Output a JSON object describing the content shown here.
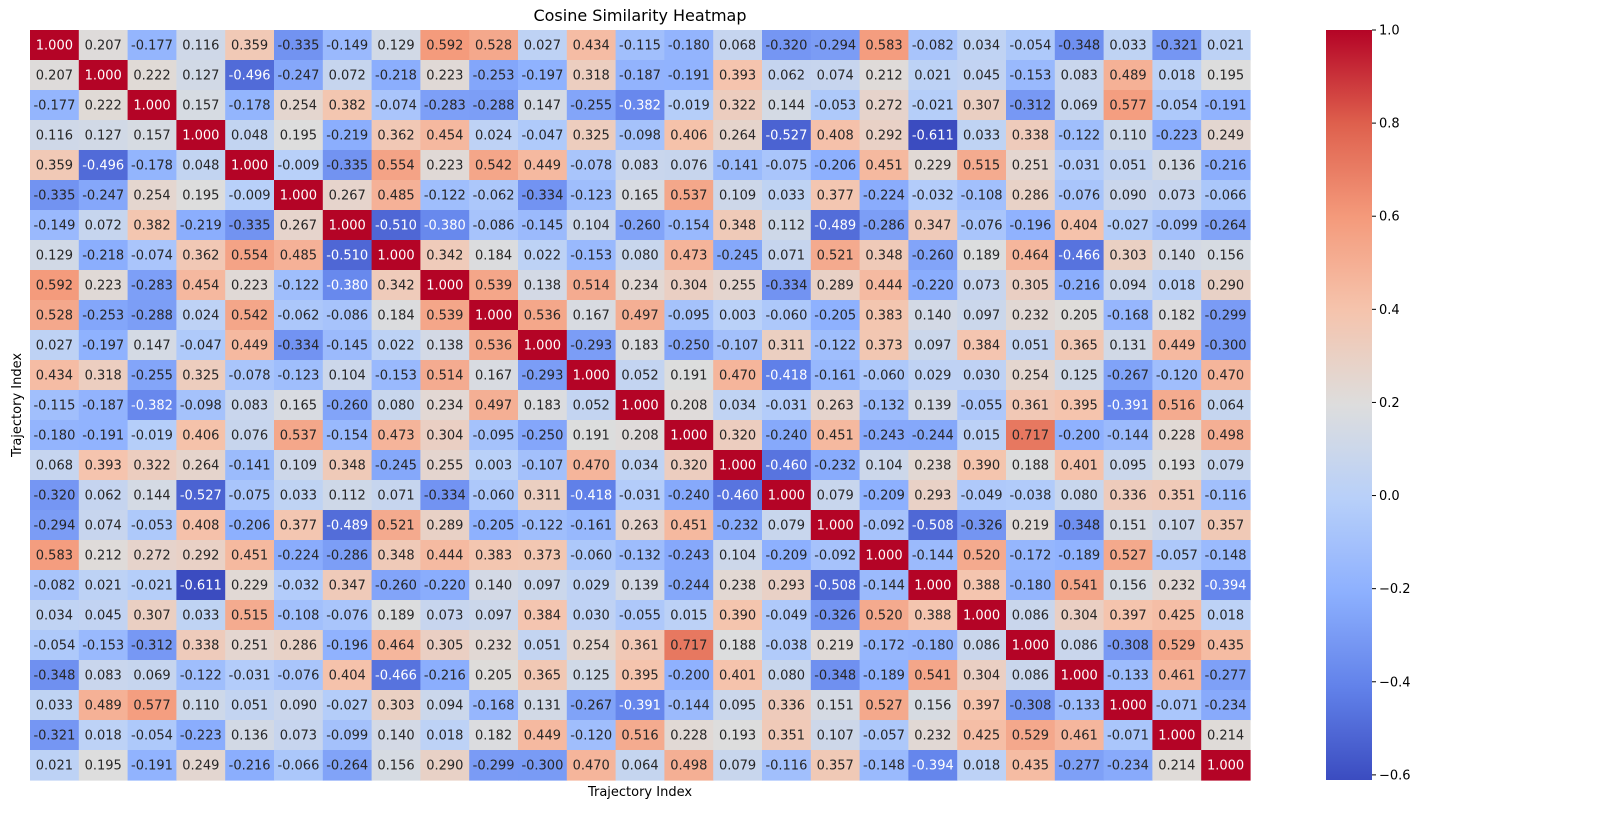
{
  "chart_data": {
    "type": "heatmap",
    "title": "Cosine Similarity Heatmap",
    "xlabel": "Trajectory Index",
    "ylabel": "Trajectory Index",
    "colormap": "coolwarm",
    "value_format": "3 decimals",
    "vmin": -0.611,
    "vmax": 1.0,
    "colorbar_ticks": [
      "1.0",
      "0.8",
      "0.6",
      "0.4",
      "0.2",
      "0.0",
      "−0.2",
      "−0.4",
      "−0.6"
    ],
    "matrix": [
      [
        1.0,
        0.207,
        -0.177,
        0.116,
        0.359,
        -0.335,
        -0.149,
        0.129,
        0.592,
        0.528,
        0.027,
        0.434,
        -0.115,
        -0.18,
        0.068,
        -0.32,
        -0.294,
        0.583,
        -0.082,
        0.034,
        -0.054,
        -0.348,
        0.033,
        -0.321,
        0.021
      ],
      [
        0.207,
        1.0,
        0.222,
        0.127,
        -0.496,
        -0.247,
        0.072,
        -0.218,
        0.223,
        -0.253,
        -0.197,
        0.318,
        -0.187,
        -0.191,
        0.393,
        0.062,
        0.074,
        0.212,
        0.021,
        0.045,
        -0.153,
        0.083,
        0.489,
        0.018,
        0.195
      ],
      [
        -0.177,
        0.222,
        1.0,
        0.157,
        -0.178,
        0.254,
        0.382,
        -0.074,
        -0.283,
        -0.288,
        0.147,
        -0.255,
        -0.382,
        -0.019,
        0.322,
        0.144,
        -0.053,
        0.272,
        -0.021,
        0.307,
        -0.312,
        0.069,
        0.577,
        -0.054,
        -0.191
      ],
      [
        0.116,
        0.127,
        0.157,
        1.0,
        0.048,
        0.195,
        -0.219,
        0.362,
        0.454,
        0.024,
        -0.047,
        0.325,
        -0.098,
        0.406,
        0.264,
        -0.527,
        0.408,
        0.292,
        -0.611,
        0.033,
        0.338,
        -0.122,
        0.11,
        -0.223,
        0.249
      ],
      [
        0.359,
        -0.496,
        -0.178,
        0.048,
        1.0,
        -0.009,
        -0.335,
        0.554,
        0.223,
        0.542,
        0.449,
        -0.078,
        0.083,
        0.076,
        -0.141,
        -0.075,
        -0.206,
        0.451,
        0.229,
        0.515,
        0.251,
        -0.031,
        0.051,
        0.136,
        -0.216
      ],
      [
        -0.335,
        -0.247,
        0.254,
        0.195,
        -0.009,
        1.0,
        0.267,
        0.485,
        -0.122,
        -0.062,
        -0.334,
        -0.123,
        0.165,
        0.537,
        0.109,
        0.033,
        0.377,
        -0.224,
        -0.032,
        -0.108,
        0.286,
        -0.076,
        0.09,
        0.073,
        -0.066
      ],
      [
        -0.149,
        0.072,
        0.382,
        -0.219,
        -0.335,
        0.267,
        1.0,
        -0.51,
        -0.38,
        -0.086,
        -0.145,
        0.104,
        -0.26,
        -0.154,
        0.348,
        0.112,
        -0.489,
        -0.286,
        0.347,
        -0.076,
        -0.196,
        0.404,
        -0.027,
        -0.099,
        -0.264
      ],
      [
        0.129,
        -0.218,
        -0.074,
        0.362,
        0.554,
        0.485,
        -0.51,
        1.0,
        0.342,
        0.184,
        0.022,
        -0.153,
        0.08,
        0.473,
        -0.245,
        0.071,
        0.521,
        0.348,
        -0.26,
        0.189,
        0.464,
        -0.466,
        0.303,
        0.14,
        0.156
      ],
      [
        0.592,
        0.223,
        -0.283,
        0.454,
        0.223,
        -0.122,
        -0.38,
        0.342,
        1.0,
        0.539,
        0.138,
        0.514,
        0.234,
        0.304,
        0.255,
        -0.334,
        0.289,
        0.444,
        -0.22,
        0.073,
        0.305,
        -0.216,
        0.094,
        0.018,
        0.29
      ],
      [
        0.528,
        -0.253,
        -0.288,
        0.024,
        0.542,
        -0.062,
        -0.086,
        0.184,
        0.539,
        1.0,
        0.536,
        0.167,
        0.497,
        -0.095,
        0.003,
        -0.06,
        -0.205,
        0.383,
        0.14,
        0.097,
        0.232,
        0.205,
        -0.168,
        0.182,
        -0.299
      ],
      [
        0.027,
        -0.197,
        0.147,
        -0.047,
        0.449,
        -0.334,
        -0.145,
        0.022,
        0.138,
        0.536,
        1.0,
        -0.293,
        0.183,
        -0.25,
        -0.107,
        0.311,
        -0.122,
        0.373,
        0.097,
        0.384,
        0.051,
        0.365,
        0.131,
        0.449,
        -0.3
      ],
      [
        0.434,
        0.318,
        -0.255,
        0.325,
        -0.078,
        -0.123,
        0.104,
        -0.153,
        0.514,
        0.167,
        -0.293,
        1.0,
        0.052,
        0.191,
        0.47,
        -0.418,
        -0.161,
        -0.06,
        0.029,
        0.03,
        0.254,
        0.125,
        -0.267,
        -0.12,
        0.47
      ],
      [
        -0.115,
        -0.187,
        -0.382,
        -0.098,
        0.083,
        0.165,
        -0.26,
        0.08,
        0.234,
        0.497,
        0.183,
        0.052,
        1.0,
        0.208,
        0.034,
        -0.031,
        0.263,
        -0.132,
        0.139,
        -0.055,
        0.361,
        0.395,
        -0.391,
        0.516,
        0.064
      ],
      [
        -0.18,
        -0.191,
        -0.019,
        0.406,
        0.076,
        0.537,
        -0.154,
        0.473,
        0.304,
        -0.095,
        -0.25,
        0.191,
        0.208,
        1.0,
        0.32,
        -0.24,
        0.451,
        -0.243,
        -0.244,
        0.015,
        0.717,
        -0.2,
        -0.144,
        0.228,
        0.498
      ],
      [
        0.068,
        0.393,
        0.322,
        0.264,
        -0.141,
        0.109,
        0.348,
        -0.245,
        0.255,
        0.003,
        -0.107,
        0.47,
        0.034,
        0.32,
        1.0,
        -0.46,
        -0.232,
        0.104,
        0.238,
        0.39,
        0.188,
        0.401,
        0.095,
        0.193,
        0.079
      ],
      [
        -0.32,
        0.062,
        0.144,
        -0.527,
        -0.075,
        0.033,
        0.112,
        0.071,
        -0.334,
        -0.06,
        0.311,
        -0.418,
        -0.031,
        -0.24,
        -0.46,
        1.0,
        0.079,
        -0.209,
        0.293,
        -0.049,
        -0.038,
        0.08,
        0.336,
        0.351,
        -0.116
      ],
      [
        -0.294,
        0.074,
        -0.053,
        0.408,
        -0.206,
        0.377,
        -0.489,
        0.521,
        0.289,
        -0.205,
        -0.122,
        -0.161,
        0.263,
        0.451,
        -0.232,
        0.079,
        1.0,
        -0.092,
        -0.508,
        -0.326,
        0.219,
        -0.348,
        0.151,
        0.107,
        0.357
      ],
      [
        0.583,
        0.212,
        0.272,
        0.292,
        0.451,
        -0.224,
        -0.286,
        0.348,
        0.444,
        0.383,
        0.373,
        -0.06,
        -0.132,
        -0.243,
        0.104,
        -0.209,
        -0.092,
        1.0,
        -0.144,
        0.52,
        -0.172,
        -0.189,
        0.527,
        -0.057,
        -0.148
      ],
      [
        -0.082,
        0.021,
        -0.021,
        -0.611,
        0.229,
        -0.032,
        0.347,
        -0.26,
        -0.22,
        0.14,
        0.097,
        0.029,
        0.139,
        -0.244,
        0.238,
        0.293,
        -0.508,
        -0.144,
        1.0,
        0.388,
        -0.18,
        0.541,
        0.156,
        0.232,
        -0.394
      ],
      [
        0.034,
        0.045,
        0.307,
        0.033,
        0.515,
        -0.108,
        -0.076,
        0.189,
        0.073,
        0.097,
        0.384,
        0.03,
        -0.055,
        0.015,
        0.39,
        -0.049,
        -0.326,
        0.52,
        0.388,
        1.0,
        0.086,
        0.304,
        0.397,
        0.425,
        0.018
      ],
      [
        -0.054,
        -0.153,
        -0.312,
        0.338,
        0.251,
        0.286,
        -0.196,
        0.464,
        0.305,
        0.232,
        0.051,
        0.254,
        0.361,
        0.717,
        0.188,
        -0.038,
        0.219,
        -0.172,
        -0.18,
        0.086,
        1.0,
        0.086,
        -0.308,
        0.529,
        0.435
      ],
      [
        -0.348,
        0.083,
        0.069,
        -0.122,
        -0.031,
        -0.076,
        0.404,
        -0.466,
        -0.216,
        0.205,
        0.365,
        0.125,
        0.395,
        -0.2,
        0.401,
        0.08,
        -0.348,
        -0.189,
        0.541,
        0.304,
        0.086,
        1.0,
        -0.133,
        0.461,
        -0.277
      ],
      [
        0.033,
        0.489,
        0.577,
        0.11,
        0.051,
        0.09,
        -0.027,
        0.303,
        0.094,
        -0.168,
        0.131,
        -0.267,
        -0.391,
        -0.144,
        0.095,
        0.336,
        0.151,
        0.527,
        0.156,
        0.397,
        -0.308,
        -0.133,
        1.0,
        -0.071,
        -0.234
      ],
      [
        -0.321,
        0.018,
        -0.054,
        -0.223,
        0.136,
        0.073,
        -0.099,
        0.14,
        0.018,
        0.182,
        0.449,
        -0.12,
        0.516,
        0.228,
        0.193,
        0.351,
        0.107,
        -0.057,
        0.232,
        0.425,
        0.529,
        0.461,
        -0.071,
        1.0,
        0.214
      ],
      [
        0.021,
        0.195,
        -0.191,
        0.249,
        -0.216,
        -0.066,
        -0.264,
        0.156,
        0.29,
        -0.299,
        -0.3,
        0.47,
        0.064,
        0.498,
        0.079,
        -0.116,
        0.357,
        -0.148,
        -0.394,
        0.018,
        0.435,
        -0.277,
        -0.234,
        0.214,
        1.0
      ]
    ]
  }
}
